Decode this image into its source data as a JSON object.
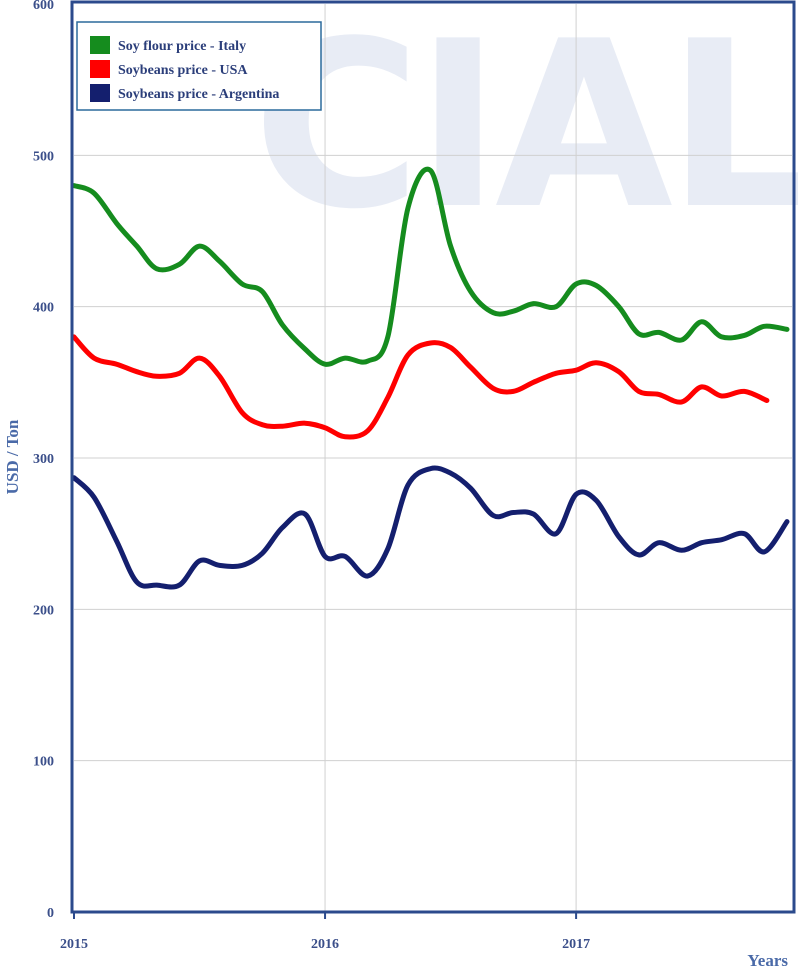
{
  "chart_data": {
    "type": "line",
    "xlabel": "Years",
    "ylabel": "USD / Ton",
    "ylim": [
      0,
      600
    ],
    "yticks": [
      0,
      100,
      200,
      300,
      400,
      500,
      600
    ],
    "xlim": [
      2015.0,
      2017.86
    ],
    "xticks": [
      {
        "value": 2015,
        "label": "2015"
      },
      {
        "value": 2016,
        "label": "2016"
      },
      {
        "value": 2017,
        "label": "2017"
      }
    ],
    "grid": true,
    "legend_position": "top-left",
    "watermark": "CIAL",
    "watermark_color": "#e8ecf5",
    "frame_color": "#2b4a8c",
    "series": [
      {
        "name": "Soy flour price - Italy",
        "color": "#158c1e",
        "x": [
          2015.0,
          2015.08,
          2015.17,
          2015.25,
          2015.33,
          2015.42,
          2015.5,
          2015.58,
          2015.67,
          2015.75,
          2015.83,
          2015.92,
          2016.0,
          2016.08,
          2016.17,
          2016.25,
          2016.33,
          2016.42,
          2016.5,
          2016.58,
          2016.67,
          2016.75,
          2016.83,
          2016.92,
          2017.0,
          2017.08,
          2017.17,
          2017.25,
          2017.33,
          2017.42,
          2017.5,
          2017.58,
          2017.67,
          2017.75,
          2017.84
        ],
        "y": [
          480,
          475,
          455,
          440,
          425,
          428,
          440,
          430,
          415,
          410,
          388,
          372,
          362,
          366,
          364,
          380,
          465,
          490,
          440,
          410,
          396,
          397,
          402,
          400,
          415,
          414,
          400,
          382,
          383,
          378,
          390,
          380,
          381,
          387,
          385
        ]
      },
      {
        "name": "Soybeans price - USA",
        "color": "#ff0000",
        "x": [
          2015.0,
          2015.08,
          2015.17,
          2015.25,
          2015.33,
          2015.42,
          2015.5,
          2015.58,
          2015.67,
          2015.75,
          2015.83,
          2015.92,
          2016.0,
          2016.08,
          2016.17,
          2016.25,
          2016.33,
          2016.42,
          2016.5,
          2016.58,
          2016.67,
          2016.75,
          2016.83,
          2016.92,
          2017.0,
          2017.08,
          2017.17,
          2017.25,
          2017.33,
          2017.42,
          2017.5,
          2017.58,
          2017.67,
          2017.76
        ],
        "y": [
          380,
          366,
          362,
          357,
          354,
          356,
          366,
          354,
          330,
          322,
          321,
          323,
          320,
          314,
          318,
          340,
          368,
          376,
          373,
          360,
          346,
          344,
          350,
          356,
          358,
          363,
          357,
          344,
          342,
          337,
          347,
          341,
          344,
          338
        ]
      },
      {
        "name": "Soybeans price - Argentina",
        "color": "#141f6e",
        "x": [
          2015.0,
          2015.08,
          2015.17,
          2015.25,
          2015.33,
          2015.42,
          2015.5,
          2015.58,
          2015.67,
          2015.75,
          2015.83,
          2015.92,
          2016.0,
          2016.08,
          2016.17,
          2016.25,
          2016.33,
          2016.42,
          2016.5,
          2016.58,
          2016.67,
          2016.75,
          2016.83,
          2016.92,
          2017.0,
          2017.08,
          2017.17,
          2017.25,
          2017.33,
          2017.42,
          2017.5,
          2017.58,
          2017.67,
          2017.75,
          2017.84
        ],
        "y": [
          287,
          274,
          245,
          218,
          216,
          216,
          232,
          229,
          229,
          237,
          254,
          263,
          235,
          235,
          222,
          240,
          282,
          293,
          290,
          280,
          262,
          264,
          263,
          250,
          276,
          272,
          248,
          236,
          244,
          239,
          244,
          246,
          250,
          238,
          258
        ]
      }
    ]
  }
}
